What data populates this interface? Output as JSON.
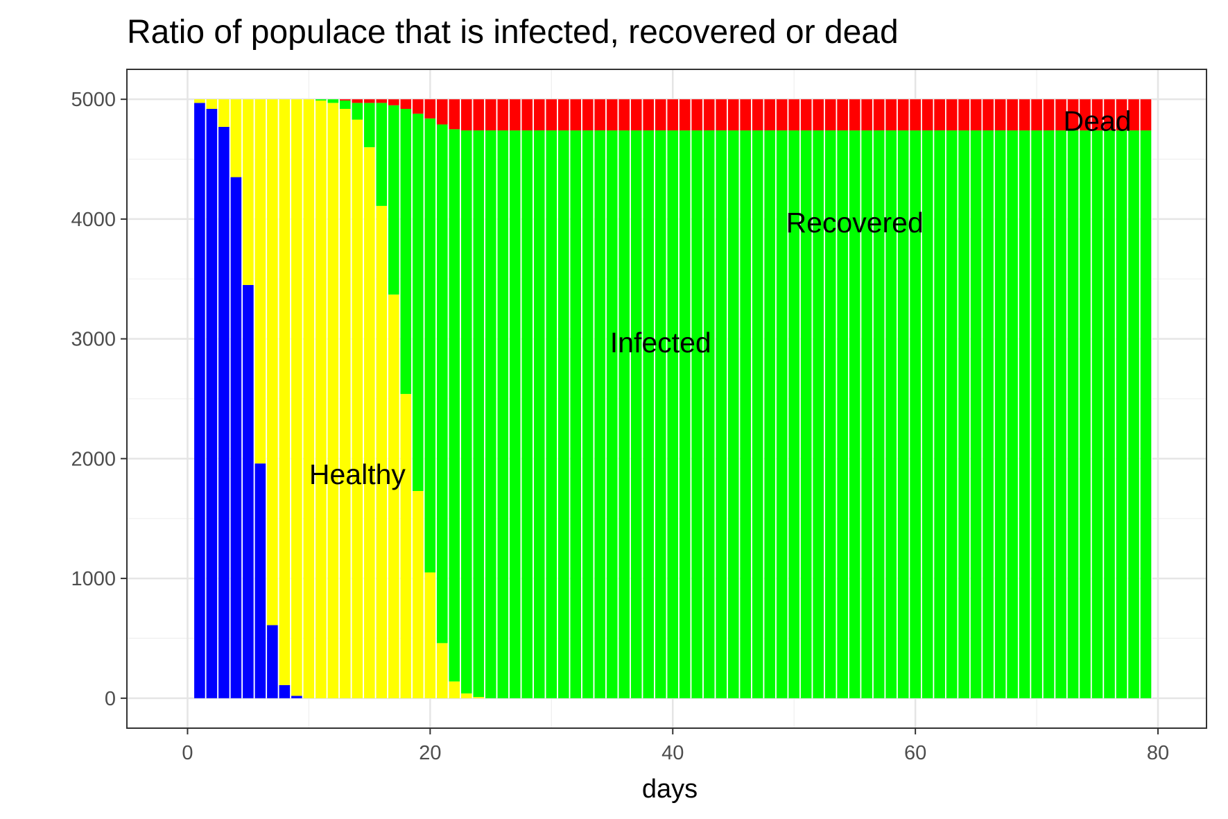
{
  "chart_data": {
    "type": "bar",
    "stacked": true,
    "title": "Ratio of populace that is infected, recovered or dead",
    "xlabel": "days",
    "ylabel": "",
    "xlim": [
      -5,
      84
    ],
    "ylim": [
      -250,
      5250
    ],
    "xticks": [
      0,
      20,
      40,
      60,
      80
    ],
    "xtick_labels": [
      "0",
      "20",
      "40",
      "60",
      "80"
    ],
    "yticks": [
      0,
      1000,
      2000,
      3000,
      4000,
      5000
    ],
    "ytick_labels": [
      "0",
      "1000",
      "2000",
      "3000",
      "4000",
      "5000"
    ],
    "grid": true,
    "total": 5000,
    "days": [
      1,
      2,
      3,
      4,
      5,
      6,
      7,
      8,
      9,
      10,
      11,
      12,
      13,
      14,
      15,
      16,
      17,
      18,
      19,
      20,
      21,
      22,
      23,
      24,
      25,
      26,
      27,
      28,
      29,
      30,
      31,
      32,
      33,
      34,
      35,
      36,
      37,
      38,
      39,
      40,
      41,
      42,
      43,
      44,
      45,
      46,
      47,
      48,
      49,
      50,
      51,
      52,
      53,
      54,
      55,
      56,
      57,
      58,
      59,
      60,
      61,
      62,
      63,
      64,
      65,
      66,
      67,
      68,
      69,
      70,
      71,
      72,
      73,
      74,
      75,
      76,
      77,
      78,
      79
    ],
    "series": [
      {
        "color": "#0000ff",
        "values": [
          4970,
          4920,
          4770,
          4350,
          3450,
          1960,
          610,
          110,
          20,
          0,
          0,
          0,
          0,
          0,
          0,
          0,
          0,
          0,
          0,
          0,
          0,
          0,
          0,
          0,
          0,
          0,
          0,
          0,
          0,
          0,
          0,
          0,
          0,
          0,
          0,
          0,
          0,
          0,
          0,
          0,
          0,
          0,
          0,
          0,
          0,
          0,
          0,
          0,
          0,
          0,
          0,
          0,
          0,
          0,
          0,
          0,
          0,
          0,
          0,
          0,
          0,
          0,
          0,
          0,
          0,
          0,
          0,
          0,
          0,
          0,
          0,
          0,
          0,
          0,
          0,
          0,
          0,
          0,
          0
        ]
      },
      {
        "color": "#ffff00",
        "values": [
          30,
          80,
          230,
          650,
          1550,
          3040,
          4390,
          4890,
          4980,
          5000,
          4990,
          4970,
          4920,
          4830,
          4600,
          4110,
          3370,
          2540,
          1730,
          1050,
          460,
          140,
          40,
          10,
          0,
          0,
          0,
          0,
          0,
          0,
          0,
          0,
          0,
          0,
          0,
          0,
          0,
          0,
          0,
          0,
          0,
          0,
          0,
          0,
          0,
          0,
          0,
          0,
          0,
          0,
          0,
          0,
          0,
          0,
          0,
          0,
          0,
          0,
          0,
          0,
          0,
          0,
          0,
          0,
          0,
          0,
          0,
          0,
          0,
          0,
          0,
          0,
          0,
          0,
          0,
          0,
          0,
          0,
          0
        ]
      },
      {
        "color": "#00ff00",
        "values": [
          0,
          0,
          0,
          0,
          0,
          0,
          0,
          0,
          0,
          0,
          10,
          30,
          70,
          140,
          370,
          860,
          1580,
          2380,
          3150,
          3790,
          4330,
          4610,
          4700,
          4730,
          4740,
          4740,
          4740,
          4740,
          4740,
          4740,
          4740,
          4740,
          4740,
          4740,
          4740,
          4740,
          4740,
          4740,
          4740,
          4740,
          4740,
          4740,
          4740,
          4740,
          4740,
          4740,
          4740,
          4740,
          4740,
          4740,
          4740,
          4740,
          4740,
          4740,
          4740,
          4740,
          4740,
          4740,
          4740,
          4740,
          4740,
          4740,
          4740,
          4740,
          4740,
          4740,
          4740,
          4740,
          4740,
          4740,
          4740,
          4740,
          4740,
          4740,
          4740,
          4740,
          4740,
          4740,
          4740
        ]
      },
      {
        "color": "#ff0000",
        "values": [
          0,
          0,
          0,
          0,
          0,
          0,
          0,
          0,
          0,
          0,
          0,
          0,
          10,
          30,
          30,
          30,
          50,
          80,
          120,
          160,
          210,
          250,
          260,
          260,
          260,
          260,
          260,
          260,
          260,
          260,
          260,
          260,
          260,
          260,
          260,
          260,
          260,
          260,
          260,
          260,
          260,
          260,
          260,
          260,
          260,
          260,
          260,
          260,
          260,
          260,
          260,
          260,
          260,
          260,
          260,
          260,
          260,
          260,
          260,
          260,
          260,
          260,
          260,
          260,
          260,
          260,
          260,
          260,
          260,
          260,
          260,
          260,
          260,
          260,
          260,
          260,
          260,
          260,
          260
        ]
      }
    ],
    "annotations": [
      {
        "text": "Healthy",
        "x": 14,
        "y": 1870
      },
      {
        "text": "Infected",
        "x": 39,
        "y": 2970
      },
      {
        "text": "Recovered",
        "x": 55,
        "y": 3970
      },
      {
        "text": "Dead",
        "x": 75,
        "y": 4820
      }
    ]
  }
}
